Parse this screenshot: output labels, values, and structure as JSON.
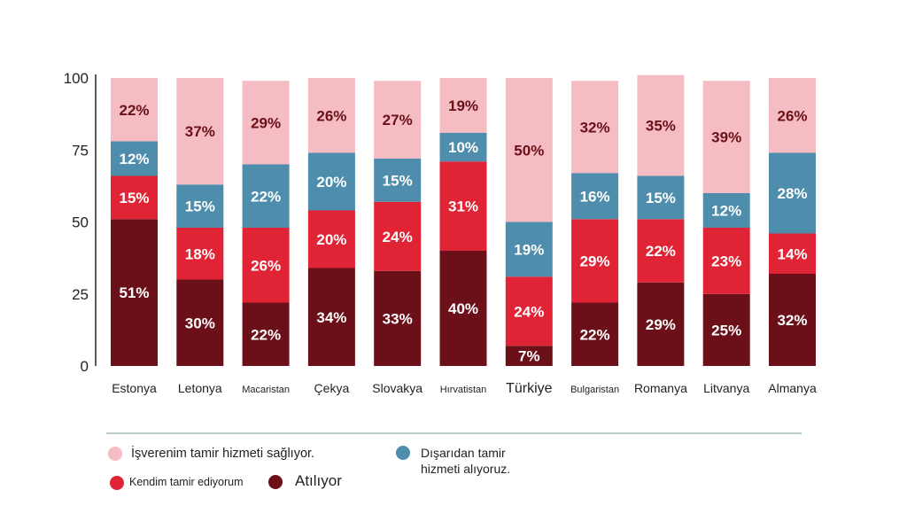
{
  "chart_data": {
    "type": "bar",
    "stacked": true,
    "title": "",
    "xlabel": "",
    "ylabel": "",
    "ylim": [
      0,
      100
    ],
    "yticks": [
      "0",
      "25",
      "50",
      "75",
      "100"
    ],
    "categories": [
      "Estonya",
      "Letonya",
      "Macaristan",
      "Çekya",
      "Slovakya",
      "Hırvatistan",
      "Türkiye",
      "Bulgaristan",
      "Romanya",
      "Litvanya",
      "Almanya"
    ],
    "series": [
      {
        "name": "Atılıyor",
        "color": "#6b1019",
        "label_color": "#ffffff",
        "values": [
          51,
          30,
          22,
          34,
          33,
          40,
          7,
          22,
          29,
          25,
          32
        ]
      },
      {
        "name": "Kendim tamir ediyorum",
        "color": "#e02435",
        "label_color": "#ffffff",
        "values": [
          15,
          18,
          26,
          20,
          24,
          31,
          24,
          29,
          22,
          23,
          14
        ]
      },
      {
        "name": "Dışarıdan tamir hizmeti alıyoruz.",
        "color": "#4e8dab",
        "label_color": "#ffffff",
        "values": [
          12,
          15,
          22,
          20,
          15,
          10,
          19,
          16,
          15,
          12,
          28
        ]
      },
      {
        "name": "İşverenim tamir hizmeti sağlıyor.",
        "color": "#f5bcc3",
        "label_color": "#6b1019",
        "values": [
          22,
          37,
          29,
          26,
          27,
          19,
          50,
          32,
          35,
          39,
          26
        ]
      }
    ],
    "legend": {
      "placement": "bottom",
      "employer": "İşverenim tamir hizmeti sağlıyor.",
      "outside_line1": "Dışarıdan tamir",
      "outside_line2": "hizmeti alıyoruz.",
      "self": "Kendim tamir ediyorum",
      "discarded": "Atılıyor"
    }
  }
}
